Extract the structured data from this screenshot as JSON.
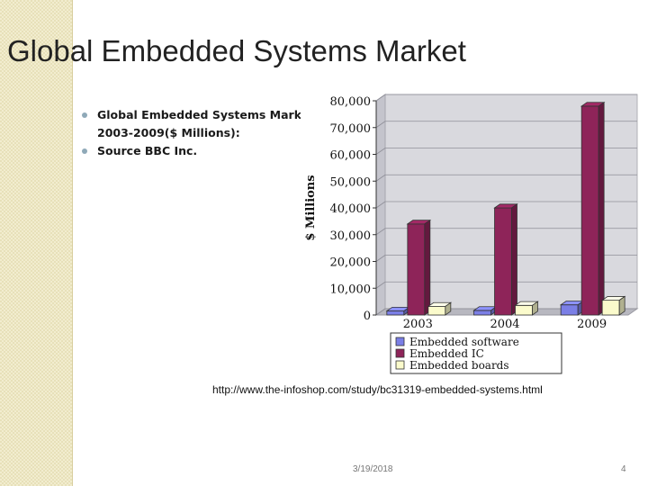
{
  "slide": {
    "title": "Global Embedded Systems Market",
    "bullets": [
      "Global Embedded Systems Market",
      "2003-2009($ Millions):",
      "Source BBC Inc."
    ],
    "source_url": "http://www.the-infoshop.com/study/bc31319-embedded-systems.html",
    "date": "3/19/2018",
    "page_number": "4"
  },
  "chart_data": {
    "type": "bar",
    "style": "3d-clustered",
    "categories": [
      "2003",
      "2004",
      "2009"
    ],
    "series": [
      {
        "name": "Embedded software",
        "values": [
          1500,
          1700,
          3800
        ],
        "color": "#7b7fe6"
      },
      {
        "name": "Embedded IC",
        "values": [
          34000,
          40000,
          78000
        ],
        "color": "#8e2459"
      },
      {
        "name": "Embedded boards",
        "values": [
          3200,
          3600,
          5500
        ],
        "color": "#fbfbcc"
      }
    ],
    "ylabel": "$ Millions",
    "xlabel": "",
    "ylim": [
      0,
      80000
    ],
    "yticks": [
      "0",
      "10,000",
      "20,000",
      "30,000",
      "40,000",
      "50,000",
      "60,000",
      "70,000",
      "80,000"
    ],
    "grid": true,
    "legend_position": "bottom"
  }
}
